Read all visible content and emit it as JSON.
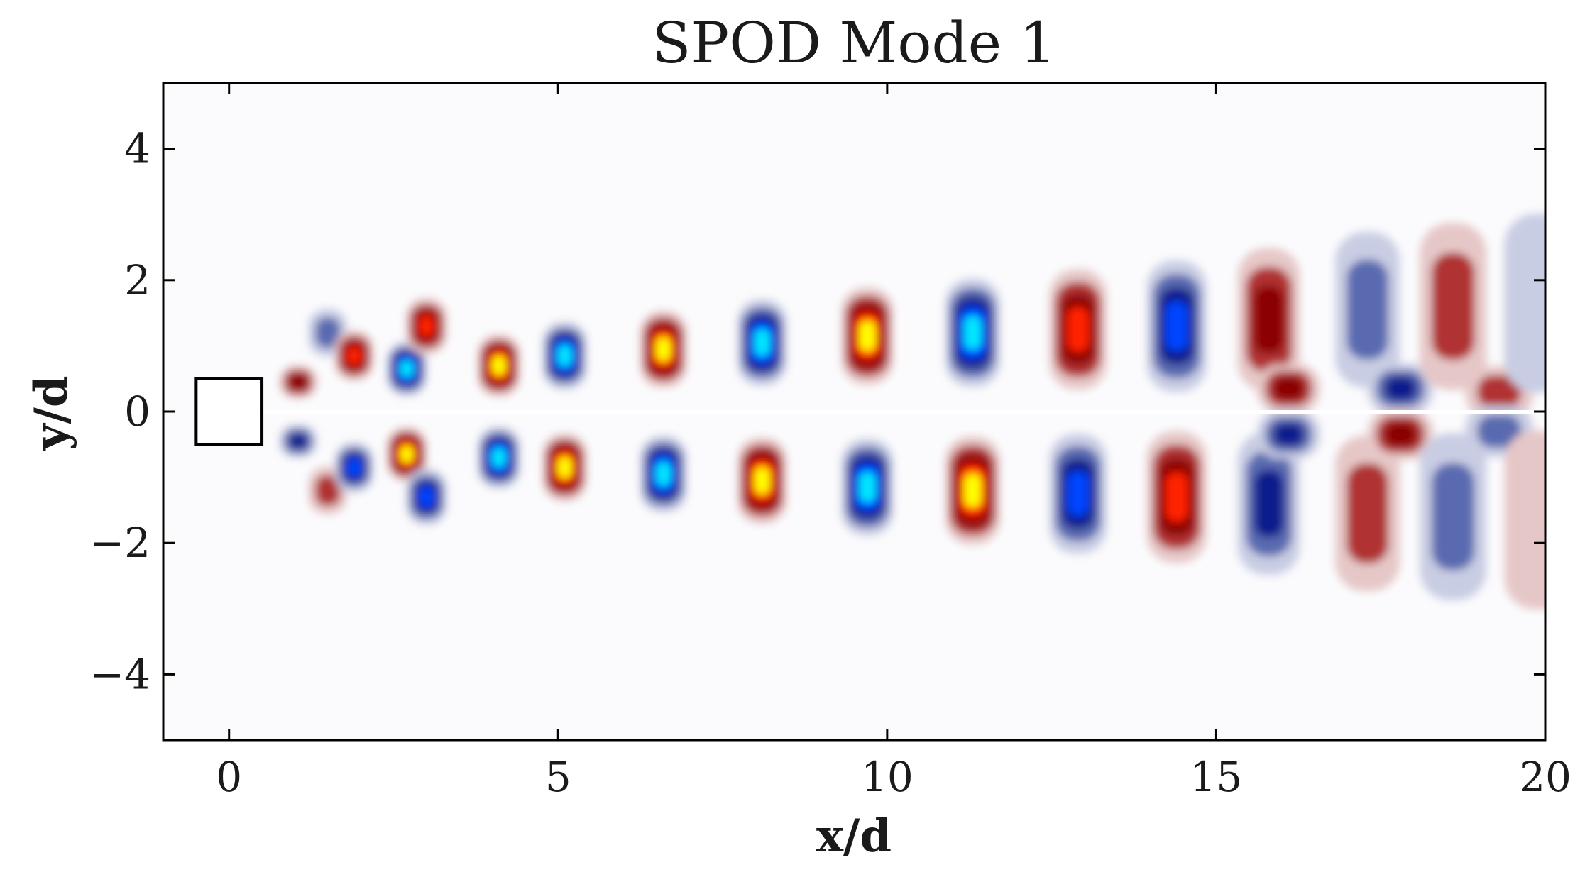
{
  "chart_data": {
    "type": "heatmap",
    "title": "SPOD Mode 1",
    "xlabel": "x/d",
    "ylabel": "y/d",
    "xlim": [
      -1,
      20
    ],
    "ylim": [
      -5,
      5
    ],
    "x_ticks": [
      0,
      5,
      10,
      15,
      20
    ],
    "y_ticks": [
      4,
      2,
      0,
      -2,
      -4
    ],
    "x_tick_labels": [
      "0",
      "5",
      "10",
      "15",
      "20"
    ],
    "y_tick_labels": [
      "4",
      "2",
      "0",
      "−2",
      "−4"
    ],
    "obstacle": {
      "shape": "square",
      "center": [
        0,
        0
      ],
      "size": 1
    },
    "colormap": {
      "negative": [
        "#ffffff",
        "#c9cde3",
        "#5a6bb0",
        "#0a1e8c",
        "#0044ff",
        "#00e8ff"
      ],
      "positive": [
        "#ffffff",
        "#e6c7c7",
        "#b03030",
        "#8b0000",
        "#ff2000",
        "#ffff00"
      ]
    },
    "structures": [
      {
        "x": 1.05,
        "y": 0.45,
        "value": 0.55
      },
      {
        "x": 1.05,
        "y": -0.45,
        "value": -0.55
      },
      {
        "x": 1.5,
        "y": 1.2,
        "value": -0.35
      },
      {
        "x": 1.5,
        "y": -1.2,
        "value": 0.35
      },
      {
        "x": 1.9,
        "y": 0.85,
        "value": 0.7
      },
      {
        "x": 1.9,
        "y": -0.85,
        "value": -0.7
      },
      {
        "x": 2.7,
        "y": 0.65,
        "value": -1.0
      },
      {
        "x": 2.7,
        "y": -0.65,
        "value": 1.0
      },
      {
        "x": 3.0,
        "y": 1.3,
        "value": 0.85
      },
      {
        "x": 3.0,
        "y": -1.3,
        "value": -0.85
      },
      {
        "x": 4.1,
        "y": 0.7,
        "value": 1.0
      },
      {
        "x": 4.1,
        "y": -0.7,
        "value": -1.0
      },
      {
        "x": 5.1,
        "y": 0.85,
        "value": -1.0
      },
      {
        "x": 5.1,
        "y": -0.85,
        "value": 1.0
      },
      {
        "x": 6.6,
        "y": 0.95,
        "value": 1.0
      },
      {
        "x": 6.6,
        "y": -0.95,
        "value": -1.0
      },
      {
        "x": 8.1,
        "y": 1.05,
        "value": -1.0
      },
      {
        "x": 8.1,
        "y": -1.05,
        "value": 1.0
      },
      {
        "x": 9.7,
        "y": 1.15,
        "value": 1.0
      },
      {
        "x": 9.7,
        "y": -1.15,
        "value": -1.0
      },
      {
        "x": 11.3,
        "y": 1.2,
        "value": -0.95
      },
      {
        "x": 11.3,
        "y": -1.2,
        "value": 0.95
      },
      {
        "x": 12.9,
        "y": 1.25,
        "value": 0.85
      },
      {
        "x": 12.9,
        "y": -1.25,
        "value": -0.85
      },
      {
        "x": 14.4,
        "y": 1.3,
        "value": -0.7
      },
      {
        "x": 14.4,
        "y": -1.3,
        "value": 0.7
      },
      {
        "x": 15.8,
        "y": 1.4,
        "value": 0.5
      },
      {
        "x": 15.8,
        "y": -1.4,
        "value": -0.5
      },
      {
        "x": 16.1,
        "y": 0.35,
        "value": 0.55
      },
      {
        "x": 16.1,
        "y": -0.35,
        "value": -0.55
      },
      {
        "x": 17.3,
        "y": 1.55,
        "value": -0.4
      },
      {
        "x": 17.3,
        "y": -1.55,
        "value": 0.4
      },
      {
        "x": 17.8,
        "y": 0.35,
        "value": -0.5
      },
      {
        "x": 17.8,
        "y": -0.35,
        "value": 0.5
      },
      {
        "x": 18.6,
        "y": 1.6,
        "value": 0.3
      },
      {
        "x": 18.6,
        "y": -1.6,
        "value": -0.3
      },
      {
        "x": 19.3,
        "y": 0.3,
        "value": 0.35
      },
      {
        "x": 19.3,
        "y": -0.3,
        "value": -0.35
      },
      {
        "x": 19.9,
        "y": 1.65,
        "value": -0.25
      },
      {
        "x": 19.9,
        "y": -1.65,
        "value": 0.25
      }
    ]
  }
}
